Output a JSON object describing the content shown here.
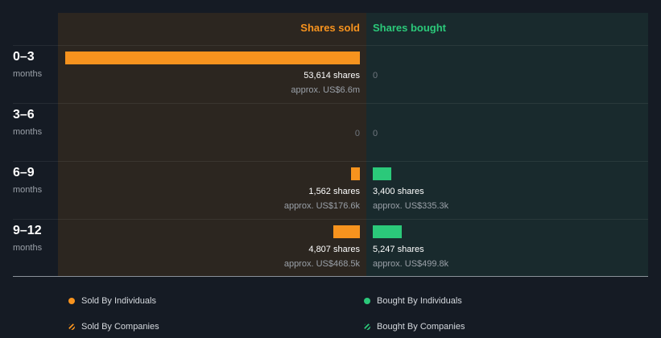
{
  "colors": {
    "sold": "#f7931e",
    "bought": "#2bc97a",
    "zero": "#6f767e"
  },
  "chart_data": {
    "type": "bar",
    "orientation": "horizontal-diverging",
    "series_names": {
      "sold": "Shares sold",
      "bought": "Shares bought"
    },
    "max_shares": 53614,
    "rows": [
      {
        "period": "0–3",
        "unit": "months",
        "sold": {
          "shares": 53614,
          "shares_label": "53,614 shares",
          "approx": "approx. US$6.6m"
        },
        "bought": {
          "shares": 0,
          "zero_label": "0"
        }
      },
      {
        "period": "3–6",
        "unit": "months",
        "sold": {
          "shares": 0,
          "zero_label": "0"
        },
        "bought": {
          "shares": 0,
          "zero_label": "0"
        }
      },
      {
        "period": "6–9",
        "unit": "months",
        "sold": {
          "shares": 1562,
          "shares_label": "1,562 shares",
          "approx": "approx. US$176.6k"
        },
        "bought": {
          "shares": 3400,
          "shares_label": "3,400 shares",
          "approx": "approx. US$335.3k"
        }
      },
      {
        "period": "9–12",
        "unit": "months",
        "sold": {
          "shares": 4807,
          "shares_label": "4,807 shares",
          "approx": "approx. US$468.5k"
        },
        "bought": {
          "shares": 5247,
          "shares_label": "5,247 shares",
          "approx": "approx. US$499.8k"
        }
      }
    ],
    "legend": [
      {
        "label": "Sold By Individuals",
        "kind": "dot",
        "color_key": "sold"
      },
      {
        "label": "Bought By Individuals",
        "kind": "dot",
        "color_key": "bought"
      },
      {
        "label": "Sold By Companies",
        "kind": "hatch",
        "color_key": "sold"
      },
      {
        "label": "Bought By Companies",
        "kind": "hatch",
        "color_key": "bought"
      }
    ]
  }
}
